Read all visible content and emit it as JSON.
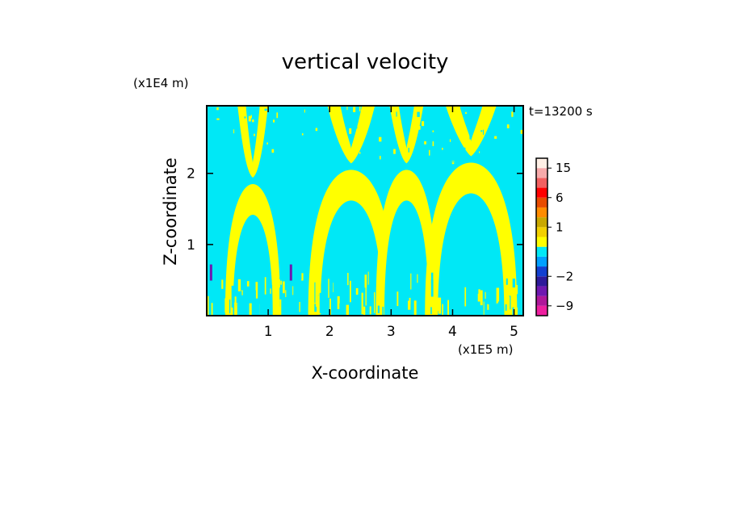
{
  "chart_data": {
    "type": "heatmap",
    "title": "vertical velocity",
    "time_label": "t=13200 s",
    "xlabel": "X-coordinate",
    "ylabel": "Z-coordinate",
    "x_unit": "(x1E5 m)",
    "y_unit": "(x1E4 m)",
    "xlim": [
      0,
      5.15
    ],
    "ylim": [
      0,
      2.95
    ],
    "x_ticks": [
      1,
      2,
      3,
      4,
      5
    ],
    "y_ticks": [
      1,
      2
    ],
    "colorbar": {
      "levels": [
        -12,
        -9,
        -6,
        -4,
        -2,
        -1,
        -0.5,
        0,
        0.5,
        1,
        2,
        4,
        6,
        9,
        12,
        15,
        20
      ],
      "colors": [
        "#ee1f9f",
        "#b0179a",
        "#6f18b0",
        "#2d1a9a",
        "#1240d0",
        "#00a0ff",
        "#00e8f6",
        "#ffff00",
        "#f2d000",
        "#c9a800",
        "#ff8c00",
        "#e84c00",
        "#ff0000",
        "#f26060",
        "#f7aaaa",
        "#fff0e6"
      ],
      "labels": [
        {
          "text": "15",
          "value": 15
        },
        {
          "text": "6",
          "value": 6
        },
        {
          "text": "1",
          "value": 1
        },
        {
          "text": "−2",
          "value": -2
        },
        {
          "text": "−9",
          "value": -9
        }
      ]
    },
    "field": {
      "positive_color": "#ffff00",
      "negative_color": "#00e8f6",
      "arches": [
        {
          "x_center": 0.75,
          "top": 1.85,
          "half_width": 0.45
        },
        {
          "x_center": 2.35,
          "top": 2.05,
          "half_width": 0.7
        },
        {
          "x_center": 3.25,
          "top": 2.05,
          "half_width": 0.5
        },
        {
          "x_center": 4.3,
          "top": 2.15,
          "half_width": 0.75
        }
      ]
    },
    "grid": false
  }
}
